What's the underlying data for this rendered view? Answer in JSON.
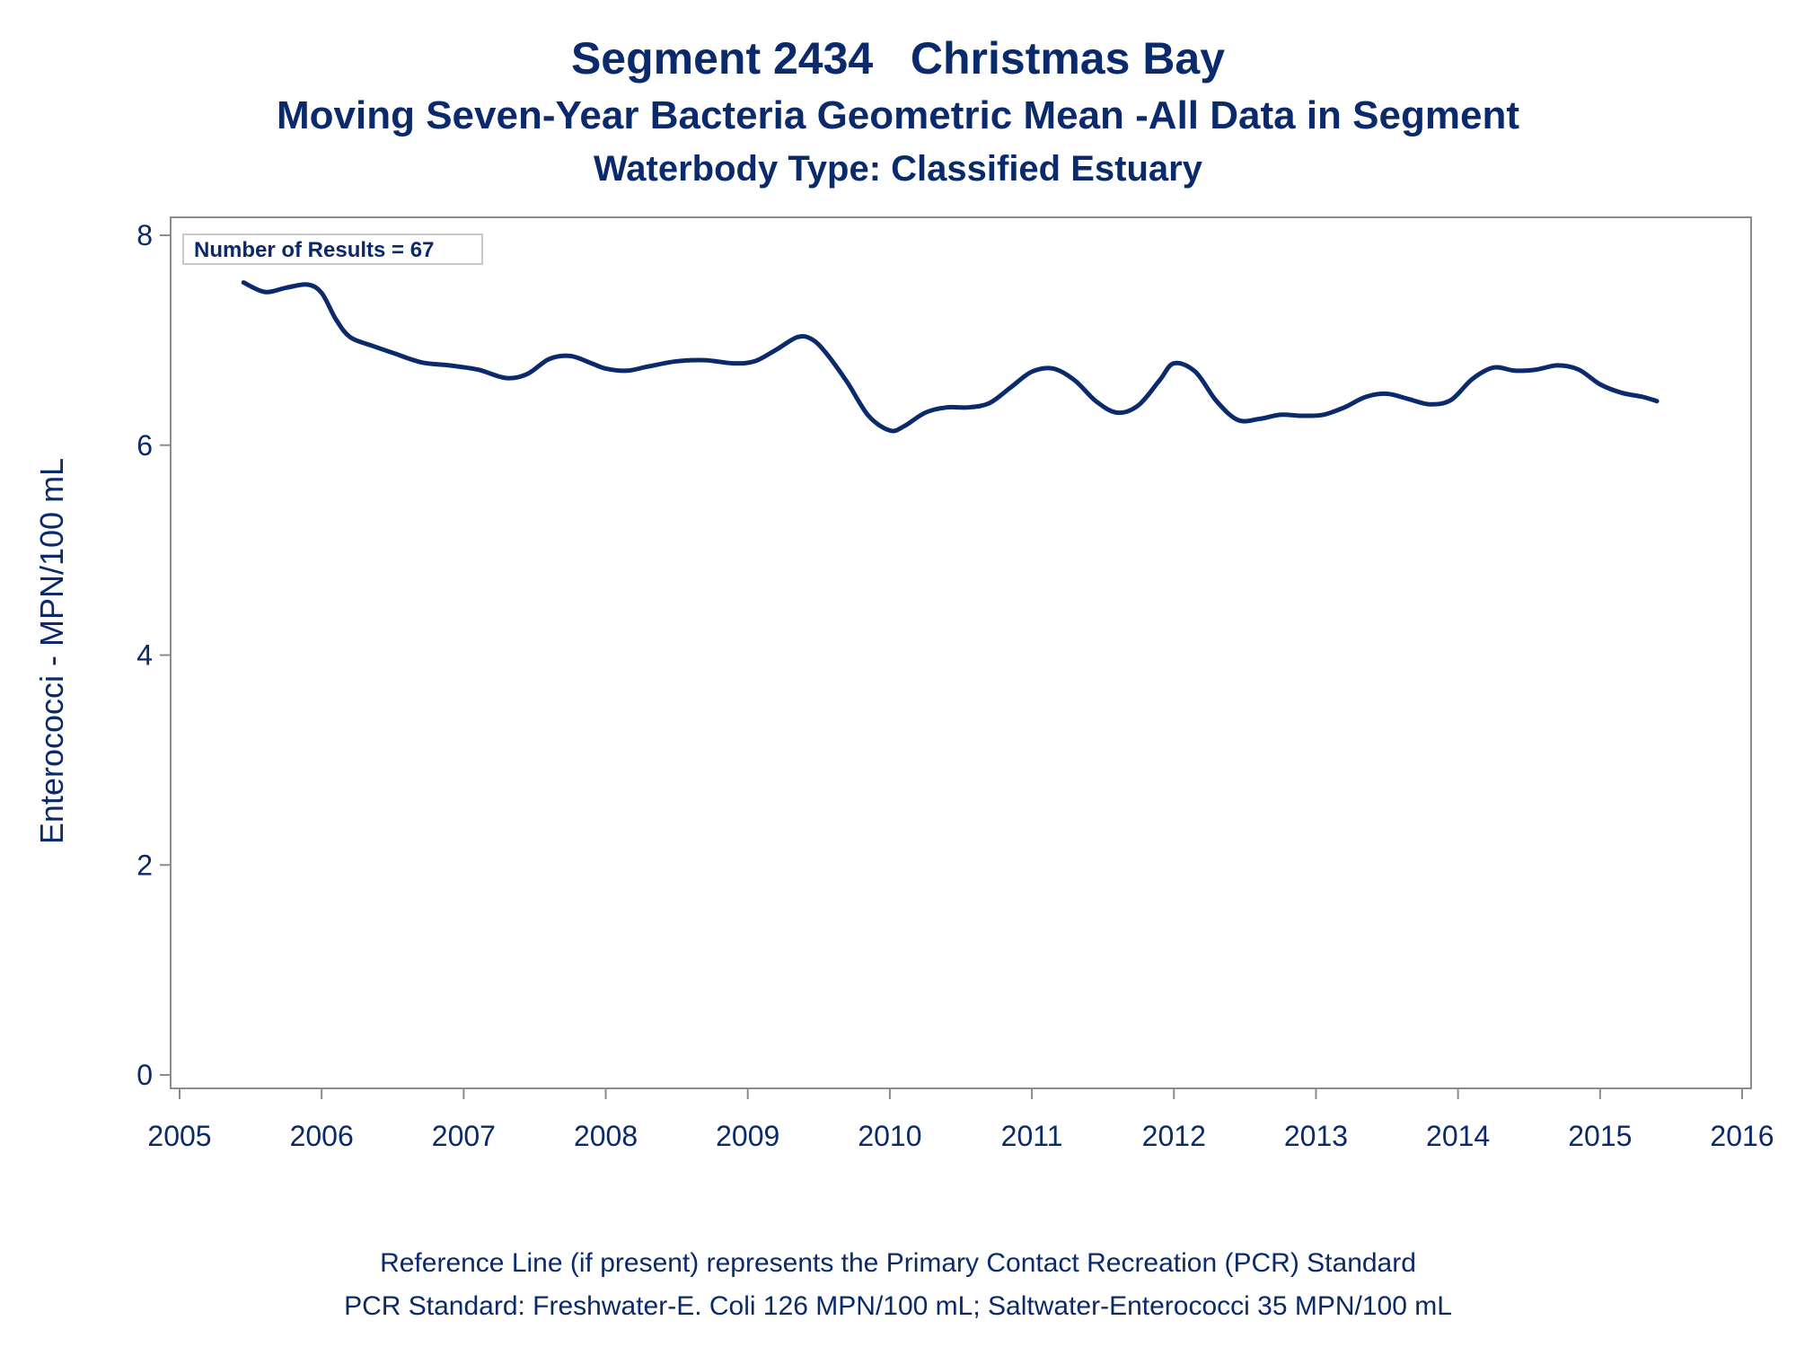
{
  "titles": {
    "line1": "Segment 2434   Christmas Bay",
    "line2": "Moving Seven-Year Bacteria Geometric Mean -All Data in Segment",
    "line3": "Waterbody Type: Classified Estuary"
  },
  "inset_label": "Number of Results = 67",
  "footnotes": {
    "line1": "Reference Line (if present) represents the Primary Contact Recreation (PCR) Standard",
    "line2": "PCR Standard: Freshwater-E. Coli 126 MPN/100 mL; Saltwater-Enterococci 35 MPN/100 mL"
  },
  "colors": {
    "line": "#0b2a6b",
    "axis": "#8c8c8c",
    "text": "#0b2a6b",
    "inset_border": "#c8c8c8"
  },
  "chart_data": {
    "type": "line",
    "ylabel": "Enterococci - MPN/100 mL",
    "xlabel": "",
    "xlim": [
      2005,
      2016
    ],
    "ylim": [
      0,
      8
    ],
    "x_ticks": [
      "2005",
      "2006",
      "2007",
      "2008",
      "2009",
      "2010",
      "2011",
      "2012",
      "2013",
      "2014",
      "2015",
      "2016"
    ],
    "y_ticks": [
      "0",
      "2",
      "4",
      "6",
      "8"
    ],
    "grid": false,
    "series": [
      {
        "x": [
          2005.45,
          2005.6,
          2005.75,
          2005.9,
          2006.0,
          2006.1,
          2006.2,
          2006.35,
          2006.5,
          2006.7,
          2006.9,
          2007.1,
          2007.3,
          2007.45,
          2007.6,
          2007.75,
          2007.9,
          2008.0,
          2008.15,
          2008.3,
          2008.5,
          2008.7,
          2008.9,
          2009.05,
          2009.2,
          2009.35,
          2009.45,
          2009.55,
          2009.7,
          2009.85,
          2010.0,
          2010.1,
          2010.25,
          2010.4,
          2010.55,
          2010.7,
          2010.85,
          2011.0,
          2011.15,
          2011.3,
          2011.45,
          2011.6,
          2011.75,
          2011.9,
          2012.0,
          2012.15,
          2012.3,
          2012.45,
          2012.6,
          2012.75,
          2012.9,
          2013.05,
          2013.2,
          2013.35,
          2013.5,
          2013.65,
          2013.8,
          2013.95,
          2014.1,
          2014.25,
          2014.4,
          2014.55,
          2014.7,
          2014.85,
          2015.0,
          2015.15,
          2015.3,
          2015.4
        ],
        "y": [
          7.55,
          7.46,
          7.5,
          7.53,
          7.45,
          7.2,
          7.03,
          6.95,
          6.88,
          6.79,
          6.76,
          6.72,
          6.64,
          6.68,
          6.82,
          6.85,
          6.78,
          6.73,
          6.71,
          6.75,
          6.8,
          6.81,
          6.78,
          6.8,
          6.91,
          7.03,
          7.01,
          6.88,
          6.6,
          6.28,
          6.14,
          6.18,
          6.31,
          6.36,
          6.36,
          6.4,
          6.55,
          6.7,
          6.73,
          6.62,
          6.42,
          6.31,
          6.38,
          6.62,
          6.78,
          6.7,
          6.42,
          6.24,
          6.25,
          6.29,
          6.28,
          6.29,
          6.36,
          6.46,
          6.49,
          6.44,
          6.39,
          6.43,
          6.63,
          6.74,
          6.71,
          6.72,
          6.76,
          6.72,
          6.58,
          6.5,
          6.46,
          6.42
        ]
      }
    ]
  }
}
